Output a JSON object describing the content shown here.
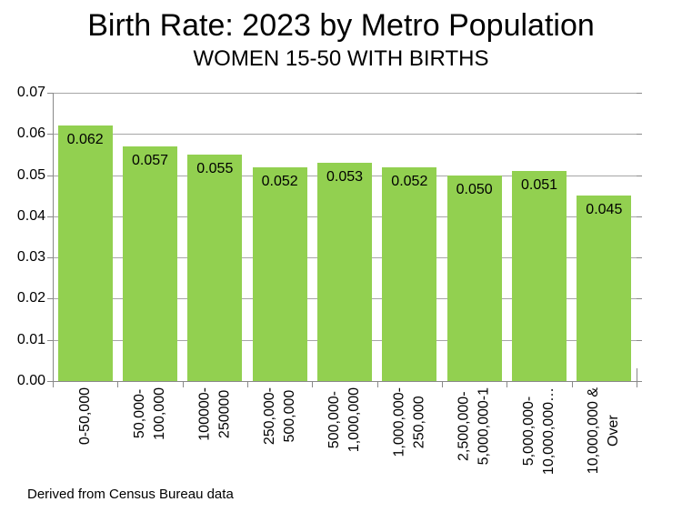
{
  "footnote": "Derived from Census Bureau data",
  "colors": {
    "bar": "#92D050",
    "gridline": "#A6A6A6",
    "axis": "#898989",
    "text": "#000000",
    "background": "#FFFFFF"
  },
  "chart_data": {
    "type": "bar",
    "title": "Birth Rate: 2023 by Metro Population",
    "subtitle": "WOMEN 15-50 WITH BIRTHS",
    "categories": [
      "0-50,000",
      "50,000-\n100,000",
      "100000-\n250000",
      "250,000-\n500,000",
      "500,000-\n1,000,000",
      "1,000,000-\n250,000",
      "2,500,000-\n5,000,000-1",
      "5,000,000-\n10,000,000…",
      "10,000,000 &\nOver"
    ],
    "values": [
      0.062,
      0.057,
      0.055,
      0.052,
      0.053,
      0.052,
      0.05,
      0.051,
      0.045
    ],
    "data_labels": [
      "0.062",
      "0.057",
      "0.055",
      "0.052",
      "0.053",
      "0.052",
      "0.050",
      "0.051",
      "0.045"
    ],
    "xlabel": "",
    "ylabel": "",
    "ylim": [
      0,
      0.07
    ],
    "ytick_step": 0.01,
    "ytick_labels": [
      "0.00",
      "0.01",
      "0.02",
      "0.03",
      "0.04",
      "0.05",
      "0.06",
      "0.07"
    ],
    "grid": true,
    "legend": false,
    "bar_color": "#92D050",
    "data_label_position": "inside-top",
    "x_label_rotation": -90,
    "source_note": "Derived from Census Bureau data"
  }
}
